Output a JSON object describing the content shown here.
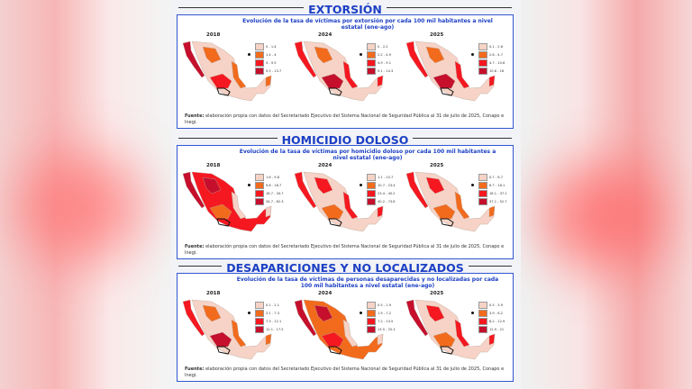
{
  "colors": {
    "c1": "#f6d3c6",
    "c2": "#f26b1d",
    "c3": "#f51820",
    "c4": "#c50f2c",
    "title": "#1c3fc4",
    "border": "#3056d3"
  },
  "source_label": "Fuente:",
  "source_text": "elaboración propia con datos del Secretariado Ejecutivo del Sistema Nacional de Seguridad Pública al 31 de julio de 2025, Conapo e Inegi.",
  "sections": [
    {
      "title": "EXTORSIÓN",
      "subtitle": "Evolución de la tasa de víctimas por extorsión por cada 100 mil habitantes a nivel estatal (ene-ago)",
      "maps": [
        {
          "year": "2018",
          "legend": [
            "0 - 1.4",
            "1.4 - 4",
            "4 - 9.5",
            "9.5 - 13.7"
          ],
          "base": "c1",
          "accents": [
            "c4",
            "c2",
            "c3",
            "c2"
          ]
        },
        {
          "year": "2024",
          "legend": [
            "0 - 2.2",
            "2.2 - 4.9",
            "4.9 - 9.1",
            "9.1 - 14.3"
          ],
          "base": "c1",
          "accents": [
            "c3",
            "c2",
            "c4",
            "c3"
          ]
        },
        {
          "year": "2025",
          "legend": [
            "0.1 - 2.6",
            "2.6 - 4.7",
            "4.7 - 10.6",
            "10.6 - 16"
          ],
          "base": "c1",
          "accents": [
            "c3",
            "c2",
            "c4",
            "c3"
          ]
        }
      ]
    },
    {
      "title": "HOMICIDIO DOLOSO",
      "subtitle": "Evolución de la tasa de víctimas por homicidio doloso por cada 100 mil habitantes a nivel estatal (ene-ago)",
      "maps": [
        {
          "year": "2018",
          "legend": [
            "1.6 - 9.8",
            "9.8 - 18.7",
            "18.7 - 34.7",
            "34.7 - 62.3"
          ],
          "base": "c3",
          "accents": [
            "c4",
            "c4",
            "c2",
            "c1"
          ]
        },
        {
          "year": "2024",
          "legend": [
            "1.1 - 10.7",
            "10.7 - 23.4",
            "23.4 - 40.2",
            "40.2 - 73.8"
          ],
          "base": "c1",
          "accents": [
            "c3",
            "c3",
            "c2",
            "c3"
          ]
        },
        {
          "year": "2025",
          "legend": [
            "0.7 - 6.7",
            "6.7 - 18.1",
            "18.1 - 37.1",
            "37.1 - 52.7"
          ],
          "base": "c1",
          "accents": [
            "c3",
            "c3",
            "c2",
            "c2"
          ]
        }
      ]
    },
    {
      "title": "DESAPARICIONES Y NO LOCALIZADOS",
      "subtitle": "Evolución de la tasa de víctimas de personas desaparecidas y no localizadas por cada 100 mil habitantes a nivel estatal (ene-ago)",
      "maps": [
        {
          "year": "2018",
          "legend": [
            "0.1 - 2.1",
            "2.1 - 7.3",
            "7.3 - 12.1",
            "12.1 - 17.5"
          ],
          "base": "c1",
          "accents": [
            "c3",
            "c2",
            "c4",
            "c2"
          ]
        },
        {
          "year": "2024",
          "legend": [
            "0.5 - 1.9",
            "1.9 - 7.2",
            "7.2 - 13.5",
            "13.5 - 25.3"
          ],
          "base": "c2",
          "accents": [
            "c4",
            "c4",
            "c3",
            "c1"
          ]
        },
        {
          "year": "2025",
          "legend": [
            "0.5 - 3.9",
            "3.9 - 8.2",
            "8.2 - 12.9",
            "12.9 - 21"
          ],
          "base": "c1",
          "accents": [
            "c4",
            "c3",
            "c2",
            "c3"
          ]
        }
      ]
    }
  ]
}
